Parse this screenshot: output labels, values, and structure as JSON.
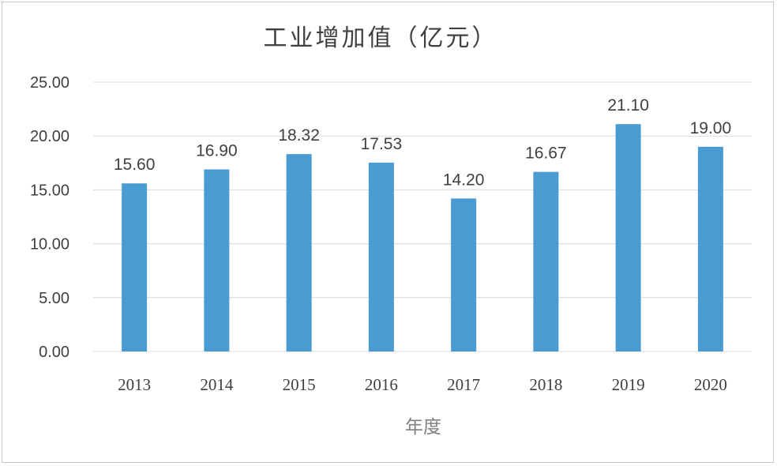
{
  "chart_data": {
    "type": "bar",
    "title": "工业增加值（亿元）",
    "xlabel": "年度",
    "ylabel": "",
    "categories": [
      "2013",
      "2014",
      "2015",
      "2016",
      "2017",
      "2018",
      "2019",
      "2020"
    ],
    "values": [
      15.6,
      16.9,
      18.32,
      17.53,
      14.2,
      16.67,
      21.1,
      19.0
    ],
    "value_labels": [
      "15.60",
      "16.90",
      "18.32",
      "17.53",
      "14.20",
      "16.67",
      "21.10",
      "19.00"
    ],
    "ylim": [
      0,
      25
    ],
    "yticks": [
      0,
      5,
      10,
      15,
      20,
      25
    ],
    "ytick_labels": [
      "0.00",
      "5.00",
      "10.00",
      "15.00",
      "20.00",
      "25.00"
    ],
    "grid": true,
    "legend": "none",
    "bar_color": "#4a9bd1"
  }
}
